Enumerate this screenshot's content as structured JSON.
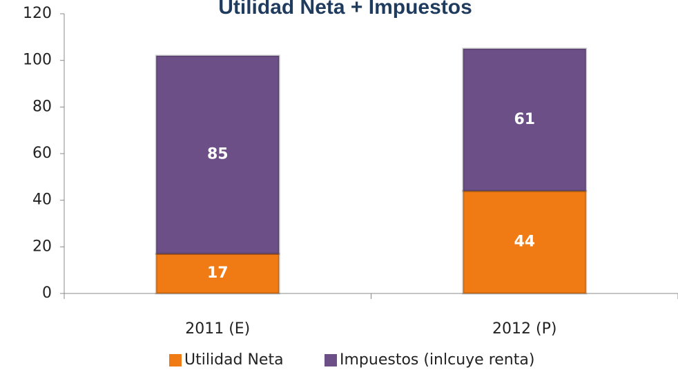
{
  "chart_data": {
    "type": "stacked_bar",
    "title": "Utilidad Neta + Impuestos",
    "categories": [
      "2011 (E)",
      "2012 (P)"
    ],
    "series": [
      {
        "name": "Utilidad Neta",
        "color": "#f07a14",
        "values": [
          17,
          44
        ]
      },
      {
        "name": "Impuestos (inlcuye renta)",
        "color": "#6b4f86",
        "values": [
          85,
          61
        ]
      }
    ],
    "ylim": [
      0,
      120
    ],
    "yticks": [
      0,
      20,
      40,
      60,
      80,
      100,
      120
    ],
    "legend": "bottom"
  }
}
